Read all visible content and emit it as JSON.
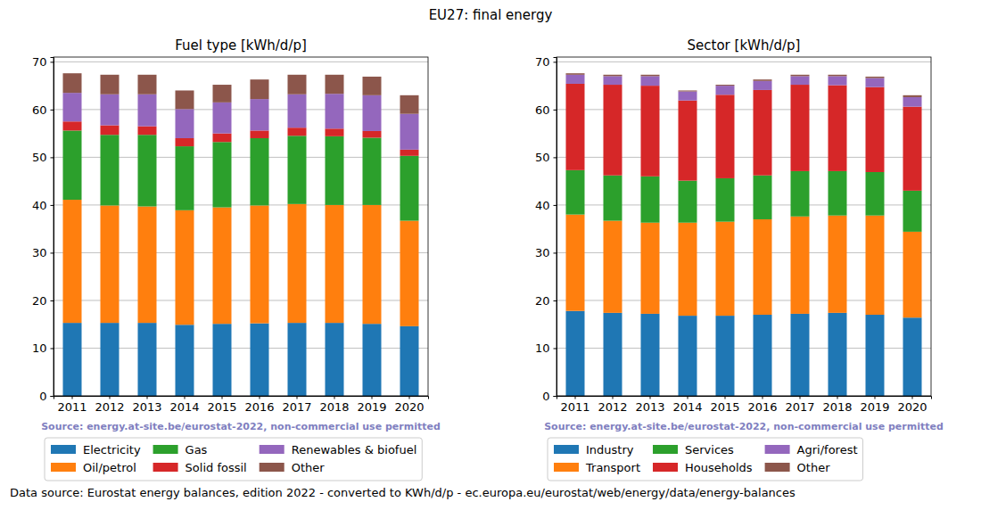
{
  "title": "EU27: final energy",
  "note": "Data source: Eurostat energy balances, edition 2022 - converted to KWh/d/p - ec.europa.eu/eurostat/web/energy/data/energy-balances",
  "chart_data": [
    {
      "type": "bar",
      "title": "Fuel type [kWh/d/p]",
      "stacked": true,
      "grid": true,
      "legend": "bottom",
      "annotation": "Source: energy.at-site.be/eurostat-2022, non-commercial use permitted",
      "categories": [
        "2011",
        "2012",
        "2013",
        "2014",
        "2015",
        "2016",
        "2017",
        "2018",
        "2019",
        "2020"
      ],
      "ylim": [
        0,
        71
      ],
      "yticks": [
        0,
        10,
        20,
        30,
        40,
        50,
        60,
        70
      ],
      "series": [
        {
          "name": "Electricity",
          "color": "#1f77b4",
          "values": [
            15.3,
            15.3,
            15.3,
            14.9,
            15.1,
            15.2,
            15.3,
            15.3,
            15.1,
            14.6
          ]
        },
        {
          "name": "Oil/petrol",
          "color": "#ff7f0e",
          "values": [
            25.8,
            24.6,
            24.4,
            24.0,
            24.4,
            24.7,
            24.9,
            24.7,
            24.9,
            22.1
          ]
        },
        {
          "name": "Gas",
          "color": "#2ca02c",
          "values": [
            14.5,
            14.8,
            15.0,
            13.4,
            13.7,
            14.1,
            14.3,
            14.4,
            14.1,
            13.6
          ]
        },
        {
          "name": "Solid fossil",
          "color": "#d62728",
          "values": [
            1.9,
            2.0,
            1.8,
            1.7,
            1.8,
            1.6,
            1.7,
            1.6,
            1.4,
            1.3
          ]
        },
        {
          "name": "Renewables & biofuel",
          "color": "#9467bd",
          "values": [
            6.0,
            6.5,
            6.7,
            6.1,
            6.5,
            6.6,
            7.0,
            7.3,
            7.5,
            7.5
          ]
        },
        {
          "name": "Other",
          "color": "#8c564b",
          "values": [
            4.1,
            4.1,
            4.1,
            3.9,
            3.7,
            4.1,
            4.1,
            4.0,
            3.9,
            3.9
          ]
        }
      ]
    },
    {
      "type": "bar",
      "title": "Sector [kWh/d/p]",
      "stacked": true,
      "grid": true,
      "legend": "bottom",
      "annotation": "Source: energy.at-site.be/eurostat-2022, non-commercial use permitted",
      "categories": [
        "2011",
        "2012",
        "2013",
        "2014",
        "2015",
        "2016",
        "2017",
        "2018",
        "2019",
        "2020"
      ],
      "ylim": [
        0,
        71
      ],
      "yticks": [
        0,
        10,
        20,
        30,
        40,
        50,
        60,
        70
      ],
      "series": [
        {
          "name": "Industry",
          "color": "#1f77b4",
          "values": [
            17.8,
            17.4,
            17.2,
            16.8,
            16.8,
            17.0,
            17.2,
            17.4,
            17.0,
            16.4
          ]
        },
        {
          "name": "Transport",
          "color": "#ff7f0e",
          "values": [
            20.2,
            19.3,
            19.1,
            19.5,
            19.7,
            20.0,
            20.4,
            20.4,
            20.8,
            18.0
          ]
        },
        {
          "name": "Services",
          "color": "#2ca02c",
          "values": [
            9.3,
            9.5,
            9.7,
            8.8,
            9.1,
            9.2,
            9.5,
            9.3,
            9.1,
            8.6
          ]
        },
        {
          "name": "Households",
          "color": "#d62728",
          "values": [
            18.1,
            19.0,
            19.0,
            16.8,
            17.5,
            17.9,
            18.1,
            18.0,
            17.8,
            17.6
          ]
        },
        {
          "name": "Agri/forest",
          "color": "#9467bd",
          "values": [
            1.9,
            1.8,
            2.0,
            1.9,
            1.9,
            1.9,
            1.8,
            1.9,
            1.9,
            2.0
          ]
        },
        {
          "name": "Other",
          "color": "#8c564b",
          "values": [
            0.3,
            0.3,
            0.3,
            0.2,
            0.2,
            0.3,
            0.3,
            0.3,
            0.3,
            0.4
          ]
        }
      ]
    }
  ]
}
